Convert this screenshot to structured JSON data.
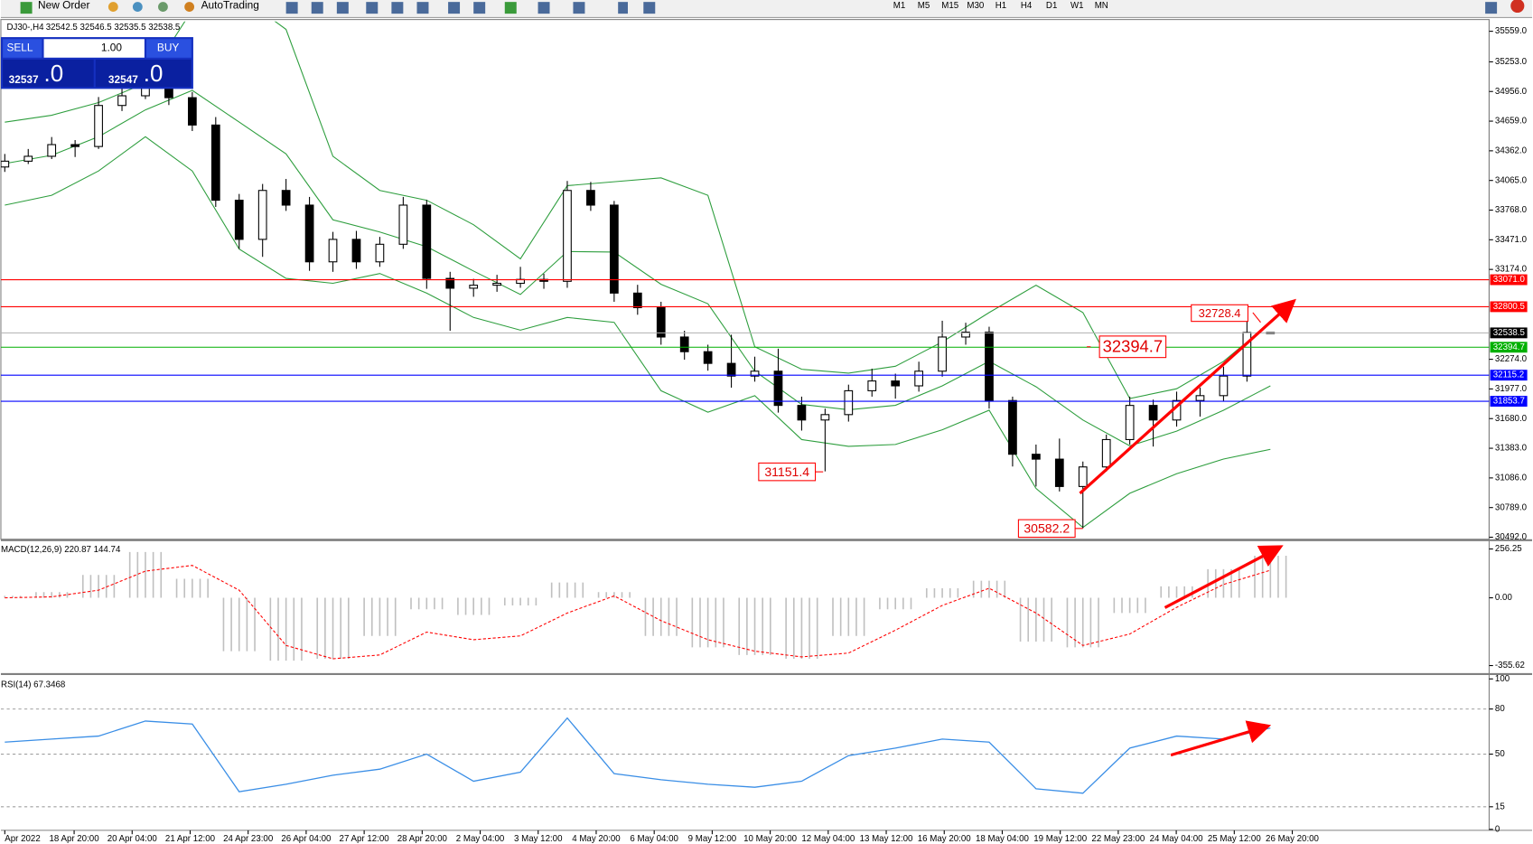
{
  "toolbar": {
    "new_order": "New Order",
    "auto_trading": "AutoTrading",
    "timeframes": [
      "M1",
      "M5",
      "M15",
      "M30",
      "H1",
      "H4",
      "D1",
      "W1",
      "MN"
    ]
  },
  "trade_panel": {
    "sell": "SELL",
    "lot": "1.00",
    "buy": "BUY",
    "bid_main": "32537",
    "bid_tail": ".0",
    "ask_main": "32547",
    "ask_tail": ".0"
  },
  "chart_data": [
    {
      "type": "candlestick",
      "symbol": "DJ30-,H4",
      "quote": "32542.5 32546.5 32535.5 32538.5",
      "ylim": [
        30472,
        35657
      ],
      "yticks": [
        {
          "value": 35559,
          "label": "35559.0"
        },
        {
          "value": 35253,
          "label": "35253.0"
        },
        {
          "value": 34956,
          "label": "34956.0"
        },
        {
          "value": 34659,
          "label": "34659.0"
        },
        {
          "value": 34362,
          "label": "34362.0"
        },
        {
          "value": 34065,
          "label": "34065.0"
        },
        {
          "value": 33768,
          "label": "33768.0"
        },
        {
          "value": 33471,
          "label": "33471.0"
        },
        {
          "value": 33174,
          "label": "33174.0"
        },
        {
          "value": 32274,
          "label": "32274.0"
        },
        {
          "value": 31977,
          "label": "31977.0"
        },
        {
          "value": 31680,
          "label": "31680.0"
        },
        {
          "value": 31383,
          "label": "31383.0"
        },
        {
          "value": 31086,
          "label": "31086.0"
        },
        {
          "value": 30789,
          "label": "30789.0"
        },
        {
          "value": 30492,
          "label": "30492.0"
        }
      ],
      "x_labels": [
        "Apr 2022",
        "18 Apr 20:00",
        "20 Apr 04:00",
        "21 Apr 12:00",
        "24 Apr 23:00",
        "26 Apr 04:00",
        "27 Apr 12:00",
        "28 Apr 20:00",
        "2 May 04:00",
        "3 May 12:00",
        "4 May 20:00",
        "6 May 04:00",
        "9 May 12:00",
        "10 May 20:00",
        "12 May 04:00",
        "13 May 12:00",
        "16 May 20:00",
        "18 May 04:00",
        "19 May 12:00",
        "22 May 23:00",
        "24 May 04:00",
        "25 May 12:00",
        "26 May 20:00"
      ],
      "ohlc": [
        [
          34200,
          34330,
          34150,
          34258
        ],
        [
          34258,
          34380,
          34230,
          34307
        ],
        [
          34307,
          34500,
          34280,
          34424
        ],
        [
          34424,
          34470,
          34300,
          34405
        ],
        [
          34405,
          34900,
          34380,
          34816
        ],
        [
          34816,
          34990,
          34760,
          34913
        ],
        [
          34913,
          35300,
          34880,
          35187
        ],
        [
          35187,
          35250,
          34820,
          34894
        ],
        [
          34894,
          34950,
          34560,
          34620
        ],
        [
          34620,
          34700,
          33800,
          33867
        ],
        [
          33867,
          33930,
          33380,
          33475
        ],
        [
          33475,
          34030,
          33300,
          33965
        ],
        [
          33965,
          34080,
          33760,
          33818
        ],
        [
          33818,
          33900,
          33160,
          33250
        ],
        [
          33250,
          33550,
          33150,
          33475
        ],
        [
          33475,
          33560,
          33180,
          33250
        ],
        [
          33250,
          33500,
          33200,
          33426
        ],
        [
          33426,
          33900,
          33380,
          33818
        ],
        [
          33818,
          33870,
          32980,
          33084
        ],
        [
          33084,
          33150,
          32560,
          32986
        ],
        [
          32986,
          33080,
          32900,
          33016
        ],
        [
          33016,
          33120,
          32950,
          33035
        ],
        [
          33035,
          33200,
          32990,
          33074
        ],
        [
          33074,
          33130,
          32980,
          33055
        ],
        [
          33055,
          34060,
          32990,
          33965
        ],
        [
          33965,
          34050,
          33760,
          33818
        ],
        [
          33818,
          33860,
          32850,
          32937
        ],
        [
          32937,
          33020,
          32720,
          32791
        ],
        [
          32791,
          32850,
          32420,
          32497
        ],
        [
          32497,
          32560,
          32270,
          32350
        ],
        [
          32350,
          32420,
          32160,
          32233
        ],
        [
          32233,
          32520,
          31990,
          32106
        ],
        [
          32106,
          32300,
          32050,
          32155
        ],
        [
          32155,
          32380,
          31740,
          31812
        ],
        [
          31812,
          31900,
          31560,
          31666
        ],
        [
          31666,
          31780,
          31151.4,
          31720
        ],
        [
          31720,
          32020,
          31650,
          31959
        ],
        [
          31959,
          32180,
          31900,
          32057
        ],
        [
          32057,
          32130,
          31880,
          32008
        ],
        [
          32008,
          32250,
          31950,
          32155
        ],
        [
          32155,
          32660,
          32100,
          32497
        ],
        [
          32497,
          32640,
          32420,
          32546
        ],
        [
          32546,
          32600,
          31780,
          31861
        ],
        [
          31861,
          31900,
          31200,
          31323
        ],
        [
          31323,
          31420,
          31000,
          31274
        ],
        [
          31274,
          31480,
          30950,
          31000
        ],
        [
          31000,
          31250,
          30582.2,
          31196
        ],
        [
          31196,
          31520,
          31150,
          31470
        ],
        [
          31470,
          31900,
          31420,
          31812
        ],
        [
          31812,
          31870,
          31400,
          31666
        ],
        [
          31666,
          31950,
          31600,
          31861
        ],
        [
          31861,
          31990,
          31700,
          31910
        ],
        [
          31910,
          32200,
          31850,
          32106
        ],
        [
          32106,
          32728.4,
          32050,
          32542.5
        ],
        [
          32542.5,
          32546.5,
          32535.5,
          32538.5
        ]
      ],
      "bands": {
        "color": "#2e9e3e",
        "upper": [
          34649,
          34718,
          34845,
          35040,
          35774,
          35921,
          35578,
          34307,
          33965,
          33867,
          33622,
          33280,
          34013,
          34052,
          34091,
          33916,
          32399,
          32174,
          32135,
          32204,
          32448,
          32742,
          33016,
          32742,
          31881,
          31979,
          32253,
          32644
        ],
        "middle": [
          34234,
          34317,
          34503,
          34772,
          34967,
          34650,
          34331,
          33671,
          33549,
          33402,
          33158,
          32923,
          33353,
          33348,
          33025,
          32830,
          32155,
          31822,
          31769,
          31813,
          32008,
          32253,
          31999,
          31666,
          31407,
          31554,
          31764,
          32008
        ],
        "lower": [
          33818,
          33916,
          34160,
          34503,
          34160,
          33378,
          33084,
          33035,
          33133,
          32937,
          32693,
          32566,
          32693,
          32644,
          31959,
          31744,
          31910,
          31470,
          31402,
          31421,
          31568,
          31764,
          30981,
          30590,
          30932,
          31128,
          31275,
          31372
        ]
      },
      "levels": [
        {
          "value": 33071.0,
          "label": "33071.0",
          "color": "#ff0000"
        },
        {
          "value": 32800.5,
          "label": "32800.5",
          "color": "#ff0000"
        },
        {
          "value": 32538.5,
          "label": "32538.5",
          "color": "#000000"
        },
        {
          "value": 32394.7,
          "label": "32394.7",
          "color": "#00b000"
        },
        {
          "value": 32115.2,
          "label": "32115.2",
          "color": "#0000ff"
        },
        {
          "value": 31853.7,
          "label": "31853.7",
          "color": "#0000ff"
        }
      ],
      "annotations": [
        "32728.4",
        "32394.7",
        "31151.4",
        "30582.2"
      ]
    },
    {
      "type": "macd",
      "title": "MACD(12,26,9) 220.87 144.74",
      "ylim": [
        -400,
        292
      ],
      "yticks": [
        256.25,
        {
          "value": 0,
          "label": "0.00"
        },
        -355.62
      ],
      "histogram": [
        10,
        30,
        120,
        240,
        100,
        -280,
        -330,
        -320,
        -200,
        -60,
        -90,
        -40,
        80,
        30,
        -200,
        -260,
        -300,
        -320,
        -200,
        -60,
        50,
        90,
        -230,
        -260,
        -80,
        60,
        150,
        220.87
      ],
      "signal": [
        0,
        5,
        40,
        140,
        170,
        40,
        -250,
        -320,
        -300,
        -180,
        -220,
        -200,
        -80,
        10,
        -120,
        -220,
        -280,
        -310,
        -290,
        -170,
        -40,
        50,
        -80,
        -250,
        -190,
        -50,
        70,
        144.74
      ],
      "color": "#c0c0c0",
      "signal_color": "#ff0000"
    },
    {
      "type": "line",
      "title": "RSI(14) 67.3468",
      "ylim": [
        0,
        100
      ],
      "yticks": [
        100,
        80,
        50,
        15,
        0
      ],
      "levels": [
        80,
        50,
        15
      ],
      "values": [
        58,
        60,
        62,
        72,
        70,
        25,
        30,
        36,
        40,
        50,
        32,
        38,
        74,
        37,
        33,
        30,
        28,
        32,
        49,
        54,
        60,
        58,
        27,
        24,
        54,
        62,
        60,
        67.3468
      ],
      "color": "#3a8ee6"
    }
  ]
}
